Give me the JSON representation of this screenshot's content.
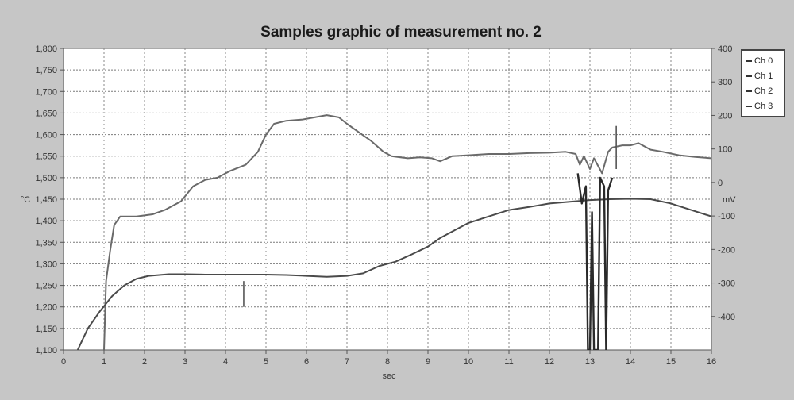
{
  "chart_data": {
    "type": "line",
    "title": "Samples graphic of measurement no. 2",
    "xlabel": "sec",
    "ylabel_left": "°C",
    "ylabel_right": "mV",
    "xlim": [
      0,
      16
    ],
    "ylim_left": [
      1100,
      1800
    ],
    "ylim_right": [
      -500,
      400
    ],
    "x_ticks": [
      "0",
      "1",
      "2",
      "3",
      "4",
      "5",
      "6",
      "7",
      "8",
      "9",
      "10",
      "11",
      "12",
      "13",
      "14",
      "15",
      "16"
    ],
    "y_ticks_left": [
      "1,100",
      "1,150",
      "1,200",
      "1,250",
      "1,300",
      "1,350",
      "1,400",
      "1,450",
      "1,500",
      "1,550",
      "1,600",
      "1,650",
      "1,700",
      "1,750",
      "1,800"
    ],
    "y_ticks_right": [
      "400",
      "300",
      "200",
      "100",
      "0",
      "-100",
      "-200",
      "-300",
      "-400"
    ],
    "grid": true,
    "legend_position": "right",
    "series": [
      {
        "name": "Ch 0",
        "axis": "left",
        "color": "#6a6a6a",
        "points": [
          [
            1.0,
            1100
          ],
          [
            1.05,
            1260
          ],
          [
            1.15,
            1330
          ],
          [
            1.25,
            1390
          ],
          [
            1.4,
            1410
          ],
          [
            1.8,
            1410
          ],
          [
            2.2,
            1415
          ],
          [
            2.5,
            1425
          ],
          [
            2.9,
            1445
          ],
          [
            3.2,
            1480
          ],
          [
            3.5,
            1495
          ],
          [
            3.8,
            1500
          ],
          [
            4.1,
            1515
          ],
          [
            4.5,
            1530
          ],
          [
            4.8,
            1560
          ],
          [
            5.0,
            1600
          ],
          [
            5.2,
            1625
          ],
          [
            5.5,
            1632
          ],
          [
            5.9,
            1635
          ],
          [
            6.2,
            1640
          ],
          [
            6.5,
            1645
          ],
          [
            6.8,
            1640
          ],
          [
            7.0,
            1625
          ],
          [
            7.3,
            1605
          ],
          [
            7.6,
            1585
          ],
          [
            7.9,
            1560
          ],
          [
            8.1,
            1550
          ],
          [
            8.5,
            1545
          ],
          [
            8.8,
            1547
          ],
          [
            9.1,
            1545
          ],
          [
            9.3,
            1538
          ],
          [
            9.6,
            1550
          ],
          [
            10.0,
            1552
          ],
          [
            10.5,
            1555
          ],
          [
            11.0,
            1555
          ],
          [
            11.5,
            1557
          ],
          [
            12.0,
            1558
          ],
          [
            12.4,
            1560
          ],
          [
            12.65,
            1555
          ],
          [
            12.75,
            1530
          ],
          [
            12.85,
            1550
          ],
          [
            13.0,
            1520
          ],
          [
            13.1,
            1545
          ],
          [
            13.3,
            1510
          ],
          [
            13.45,
            1560
          ],
          [
            13.55,
            1570
          ],
          [
            13.8,
            1575
          ],
          [
            14.0,
            1575
          ],
          [
            14.2,
            1580
          ],
          [
            14.5,
            1565
          ],
          [
            14.8,
            1560
          ],
          [
            15.2,
            1552
          ],
          [
            15.6,
            1548
          ],
          [
            16.0,
            1545
          ]
        ]
      },
      {
        "name": "Ch 1",
        "axis": "left",
        "color": "#4a4a4a",
        "points": [
          [
            0.35,
            1100
          ],
          [
            0.6,
            1150
          ],
          [
            0.9,
            1190
          ],
          [
            1.2,
            1225
          ],
          [
            1.5,
            1250
          ],
          [
            1.8,
            1265
          ],
          [
            2.1,
            1272
          ],
          [
            2.6,
            1276
          ],
          [
            3.0,
            1276
          ],
          [
            3.5,
            1275
          ],
          [
            4.0,
            1275
          ],
          [
            4.5,
            1275
          ],
          [
            5.0,
            1275
          ],
          [
            5.5,
            1274
          ],
          [
            6.0,
            1272
          ],
          [
            6.5,
            1270
          ],
          [
            7.0,
            1272
          ],
          [
            7.4,
            1278
          ],
          [
            7.8,
            1295
          ],
          [
            8.2,
            1305
          ],
          [
            8.6,
            1322
          ],
          [
            9.0,
            1340
          ],
          [
            9.3,
            1360
          ],
          [
            9.7,
            1380
          ],
          [
            10.0,
            1395
          ],
          [
            10.5,
            1410
          ],
          [
            11.0,
            1425
          ],
          [
            11.5,
            1432
          ],
          [
            12.0,
            1440
          ],
          [
            12.5,
            1444
          ],
          [
            13.0,
            1448
          ],
          [
            13.5,
            1450
          ],
          [
            14.0,
            1451
          ],
          [
            14.5,
            1450
          ],
          [
            15.0,
            1440
          ],
          [
            15.5,
            1425
          ],
          [
            16.0,
            1410
          ]
        ]
      },
      {
        "name": "Ch 2",
        "axis": "left",
        "color": "#2a2a2a",
        "points": [
          [
            12.7,
            1510
          ],
          [
            12.8,
            1440
          ],
          [
            12.9,
            1480
          ],
          [
            12.95,
            1100
          ],
          [
            13.0,
            1100
          ],
          [
            13.05,
            1420
          ],
          [
            13.1,
            1100
          ],
          [
            13.2,
            1100
          ],
          [
            13.25,
            1500
          ],
          [
            13.35,
            1480
          ],
          [
            13.4,
            1100
          ],
          [
            13.45,
            1470
          ],
          [
            13.55,
            1500
          ]
        ]
      },
      {
        "name": "Ch 3",
        "axis": "left",
        "color": "#555555",
        "points": [
          [
            4.45,
            1260
          ],
          [
            4.45,
            1200
          ],
          [
            13.65,
            1620
          ],
          [
            13.65,
            1520
          ]
        ]
      }
    ]
  }
}
